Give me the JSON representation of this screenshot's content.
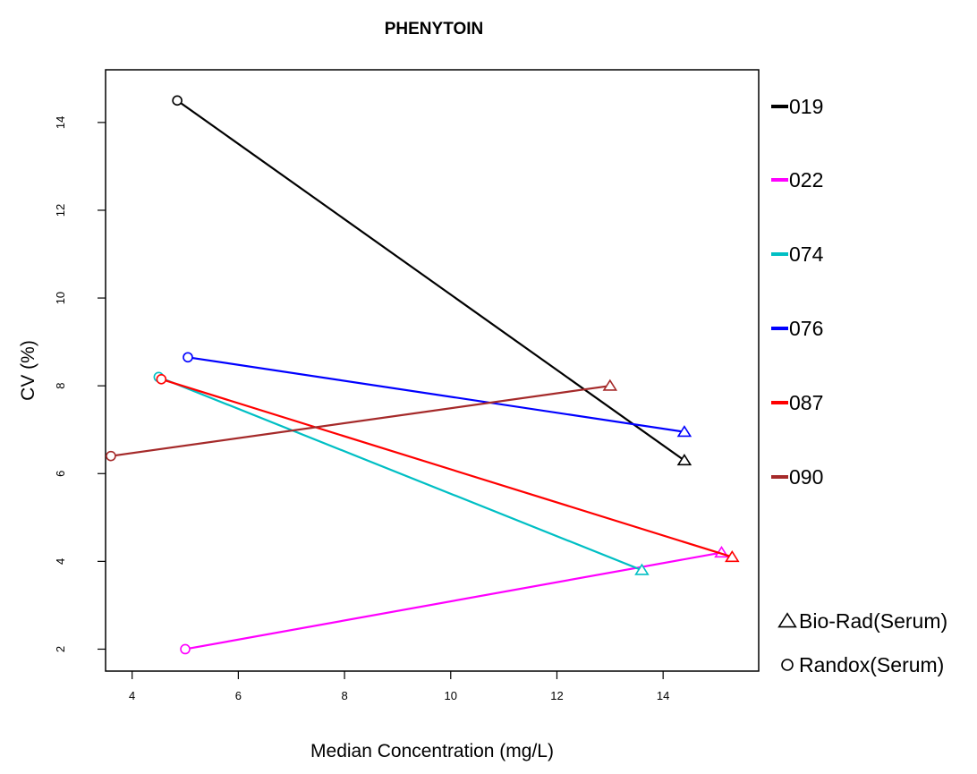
{
  "chart_data": {
    "type": "line",
    "title": "PHENYTOIN",
    "xlabel": "Median Concentration  (mg/L)",
    "ylabel": "CV (%)",
    "xlim": [
      3.5,
      15.8
    ],
    "ylim": [
      1.5,
      15.2
    ],
    "xticks": [
      4,
      6,
      8,
      10,
      12,
      14
    ],
    "yticks": [
      2,
      4,
      6,
      8,
      10,
      12,
      14
    ],
    "grid": false,
    "legend_position": "right",
    "series": [
      {
        "name": "019",
        "color": "#000000",
        "randox": {
          "x": 4.85,
          "y": 14.5
        },
        "biorad": {
          "x": 14.4,
          "y": 6.3
        }
      },
      {
        "name": "022",
        "color": "#ff00ff",
        "randox": {
          "x": 5.0,
          "y": 2.0
        },
        "biorad": {
          "x": 15.1,
          "y": 4.2
        }
      },
      {
        "name": "074",
        "color": "#00bfc4",
        "randox": {
          "x": 4.5,
          "y": 8.2
        },
        "biorad": {
          "x": 13.6,
          "y": 3.8
        }
      },
      {
        "name": "076",
        "color": "#0000ff",
        "randox": {
          "x": 5.05,
          "y": 8.65
        },
        "biorad": {
          "x": 14.4,
          "y": 6.95
        }
      },
      {
        "name": "087",
        "color": "#ff0000",
        "randox": {
          "x": 4.55,
          "y": 8.15
        },
        "biorad": {
          "x": 15.3,
          "y": 4.1
        }
      },
      {
        "name": "090",
        "color": "#a52a2a",
        "randox": {
          "x": 3.6,
          "y": 6.4
        },
        "biorad": {
          "x": 13.0,
          "y": 8.0
        }
      }
    ],
    "marker_legend": [
      {
        "shape": "triangle",
        "label": "Bio-Rad(Serum)"
      },
      {
        "shape": "circle",
        "label": "Randox(Serum)"
      }
    ]
  }
}
